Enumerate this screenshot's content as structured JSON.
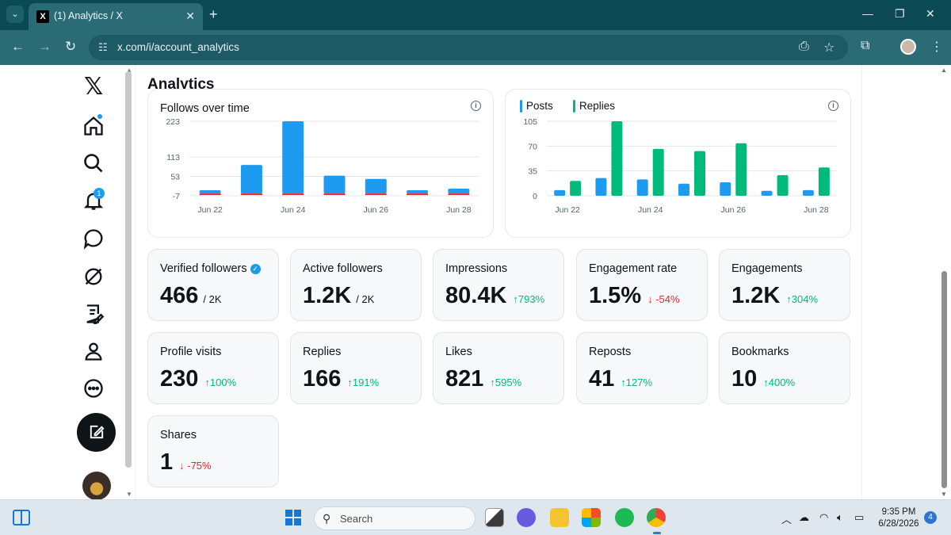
{
  "browser": {
    "tab_title": "(1) Analytics / X",
    "url": "x.com/i/account_analytics"
  },
  "sidebar": {
    "notifications_badge": "1"
  },
  "page": {
    "title": "Analytics"
  },
  "charts": {
    "follows": {
      "title": "Follows over time"
    },
    "posts_replies": {
      "legend": [
        "Posts",
        "Replies"
      ]
    }
  },
  "chart_data": [
    {
      "type": "bar",
      "title": "Follows over time",
      "x": [
        "Jun 22",
        "Jun 23",
        "Jun 24",
        "Jun 25",
        "Jun 26",
        "Jun 27",
        "Jun 28"
      ],
      "x_tick_labels": [
        "Jun 22",
        "Jun 24",
        "Jun 26",
        "Jun 28"
      ],
      "y_tick_labels": [
        "223",
        "113",
        "53",
        "-7"
      ],
      "ylim": [
        -7,
        223
      ],
      "series": [
        {
          "values": [
            10,
            88,
            223,
            55,
            45,
            10,
            15
          ],
          "color": "#1d9bf0"
        },
        {
          "values": [
            -3,
            -1,
            -2,
            -2,
            -3,
            -3,
            -3
          ],
          "color": "#f4212e"
        }
      ],
      "grid": true
    },
    {
      "type": "bar",
      "x": [
        "Jun 22",
        "Jun 23",
        "Jun 24",
        "Jun 25",
        "Jun 26",
        "Jun 27",
        "Jun 28"
      ],
      "x_tick_labels": [
        "Jun 22",
        "Jun 24",
        "Jun 26",
        "Jun 28"
      ],
      "y_tick_labels": [
        "105",
        "70",
        "35",
        "0"
      ],
      "ylim": [
        0,
        105
      ],
      "series": [
        {
          "name": "Posts",
          "values": [
            8,
            25,
            23,
            17,
            19,
            7,
            8
          ],
          "color": "#1d9bf0"
        },
        {
          "name": "Replies",
          "values": [
            21,
            105,
            66,
            63,
            74,
            29,
            40
          ],
          "color": "#00ba7c"
        }
      ],
      "legend": "top-left",
      "grid": true
    }
  ],
  "stats": [
    {
      "label": "Verified followers",
      "value": "466",
      "sub": "/ 2K",
      "change": "",
      "verified": true
    },
    {
      "label": "Active followers",
      "value": "1.2K",
      "sub": "/ 2K",
      "change": ""
    },
    {
      "label": "Impressions",
      "value": "80.4K",
      "sub": "",
      "change": "↑793%",
      "direction": "up"
    },
    {
      "label": "Engagement rate",
      "value": "1.5%",
      "sub": "",
      "change": "↓ -54%",
      "direction": "down"
    },
    {
      "label": "Engagements",
      "value": "1.2K",
      "sub": "",
      "change": "↑304%",
      "direction": "up"
    },
    {
      "label": "Profile visits",
      "value": "230",
      "sub": "",
      "change": "↑100%",
      "direction": "up"
    },
    {
      "label": "Replies",
      "value": "166",
      "sub": "",
      "change": "↑191%",
      "direction": "up"
    },
    {
      "label": "Likes",
      "value": "821",
      "sub": "",
      "change": "↑595%",
      "direction": "up"
    },
    {
      "label": "Reposts",
      "value": "41",
      "sub": "",
      "change": "↑127%",
      "direction": "up"
    },
    {
      "label": "Bookmarks",
      "value": "10",
      "sub": "",
      "change": "↑400%",
      "direction": "up"
    },
    {
      "label": "Shares",
      "value": "1",
      "sub": "",
      "change": "↓ -75%",
      "direction": "down"
    }
  ],
  "taskbar": {
    "search_placeholder": "Search",
    "time": "9:35 PM",
    "date": "6/28/2026",
    "notification_count": "4"
  },
  "colors": {
    "accent": "#1d9bf0",
    "positive": "#00ba7c",
    "negative": "#f4212e",
    "browser_frame": "#0b4a55"
  }
}
